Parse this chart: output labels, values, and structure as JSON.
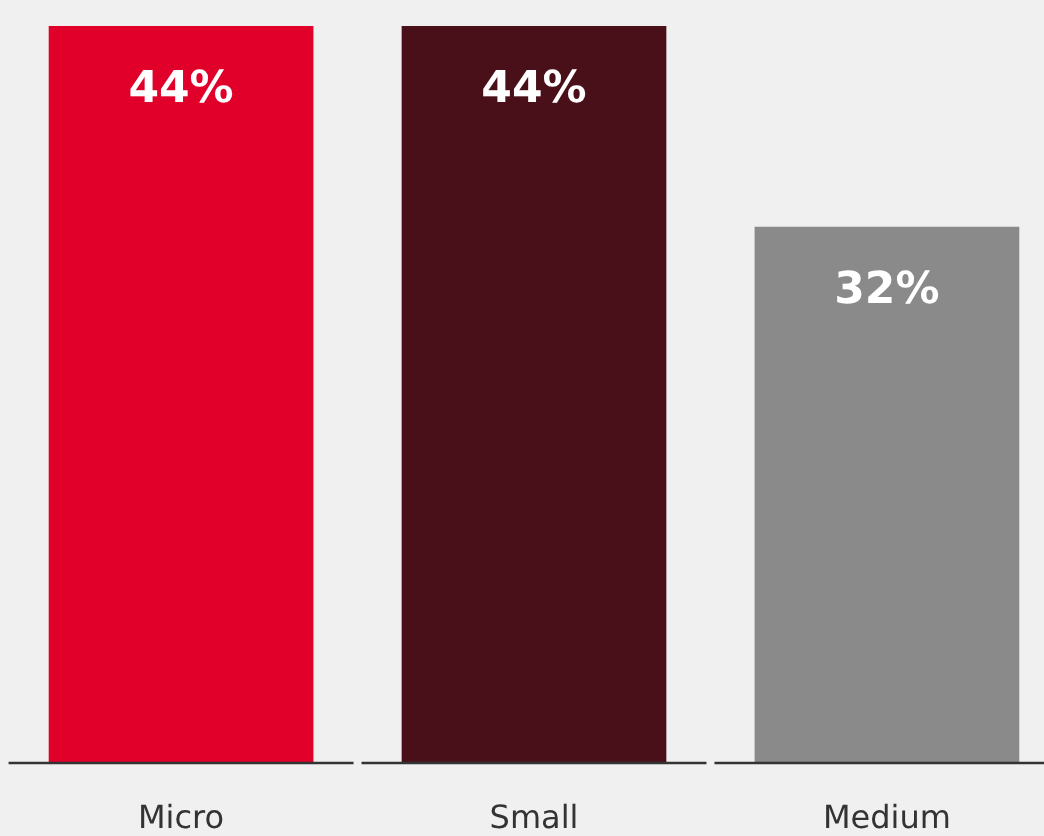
{
  "chart_data": {
    "type": "bar",
    "categories": [
      "Micro",
      "Small",
      "Medium"
    ],
    "values": [
      44,
      44,
      32
    ],
    "colors": [
      "#e0002a",
      "#4a1019",
      "#8a8a8a"
    ],
    "value_labels": [
      "44%",
      "44%",
      "32%"
    ]
  }
}
